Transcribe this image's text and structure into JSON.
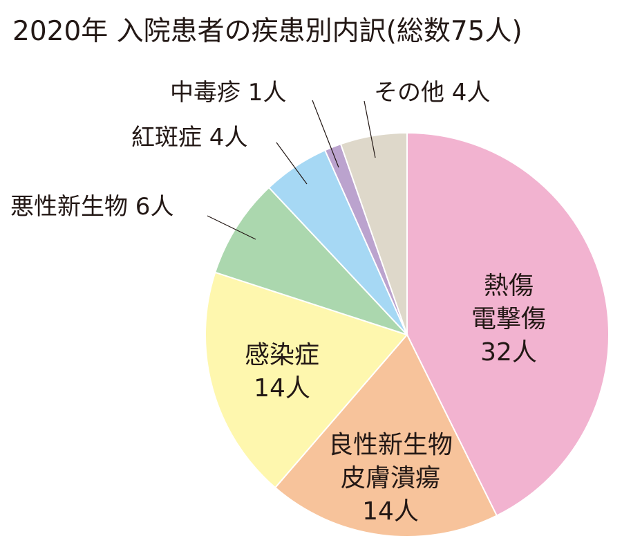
{
  "chart_data": {
    "type": "pie",
    "title": "2020年 入院患者の疾患別内訳(総数75人)",
    "slices": [
      {
        "label": [
          "熱傷",
          "電撃傷"
        ],
        "value_text": "32人",
        "value": 32,
        "color": "#F2B3D0"
      },
      {
        "label": [
          "良性新生物",
          "皮膚潰瘍"
        ],
        "value_text": "14人",
        "value": 14,
        "color": "#F7C39B"
      },
      {
        "label": [
          "感染症"
        ],
        "value_text": "14人",
        "value": 14,
        "color": "#FEF7AE"
      },
      {
        "label": [
          "悪性新生物"
        ],
        "value_text": "6人",
        "value": 6,
        "color": "#ABD7AE"
      },
      {
        "label": [
          "紅斑症"
        ],
        "value_text": "4人",
        "value": 4,
        "color": "#A6D8F4"
      },
      {
        "label": [
          "中毒疹"
        ],
        "value_text": "1人",
        "value": 1,
        "color": "#BBA3CE"
      },
      {
        "label": [
          "その他"
        ],
        "value_text": "4人",
        "value": 4,
        "color": "#DED8CA"
      }
    ],
    "total": 75
  }
}
